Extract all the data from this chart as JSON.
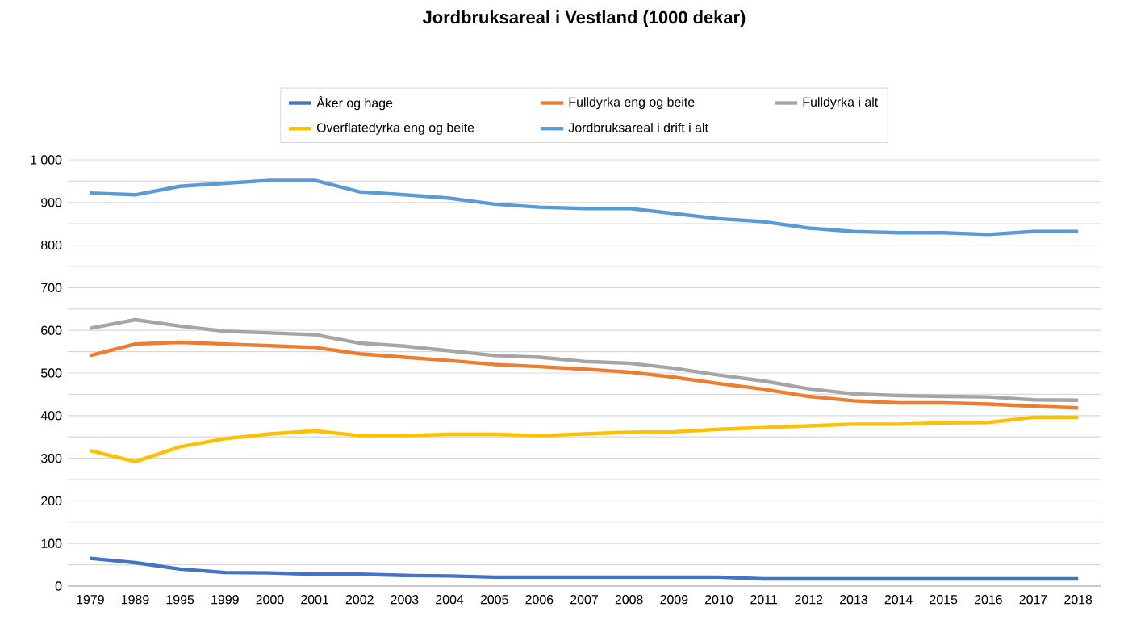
{
  "chart_data": {
    "type": "line",
    "title": "Jordbruksareal i Vestland (1000 dekar)",
    "categories": [
      "1979",
      "1989",
      "1995",
      "1999",
      "2000",
      "2001",
      "2002",
      "2003",
      "2004",
      "2005",
      "2006",
      "2007",
      "2008",
      "2009",
      "2010",
      "2011",
      "2012",
      "2013",
      "2014",
      "2015",
      "2016",
      "2017",
      "2018"
    ],
    "series": [
      {
        "name": "Åker og hage",
        "color": "#4472c4",
        "values": [
          65,
          55,
          40,
          32,
          31,
          28,
          28,
          25,
          24,
          21,
          21,
          21,
          21,
          21,
          21,
          17,
          17,
          17,
          17,
          17,
          17,
          17,
          17
        ]
      },
      {
        "name": "Fulldyrka eng og beite",
        "color": "#ed7d31",
        "values": [
          541,
          568,
          572,
          568,
          564,
          560,
          545,
          537,
          529,
          520,
          515,
          509,
          502,
          490,
          475,
          462,
          445,
          435,
          430,
          430,
          427,
          422,
          418
        ]
      },
      {
        "name": "Fulldyrka i alt",
        "color": "#a5a5a5",
        "values": [
          605,
          625,
          610,
          598,
          594,
          590,
          570,
          563,
          552,
          541,
          537,
          527,
          523,
          511,
          495,
          481,
          463,
          451,
          447,
          445,
          444,
          437,
          436
        ]
      },
      {
        "name": "Overflatedyrka eng og beite",
        "color": "#ffc000",
        "values": [
          318,
          292,
          327,
          346,
          357,
          364,
          353,
          353,
          356,
          356,
          353,
          357,
          361,
          362,
          368,
          372,
          376,
          380,
          380,
          383,
          384,
          396,
          396
        ]
      },
      {
        "name": "Jordbruksareal i drift i alt",
        "color": "#5b9bd5",
        "values": [
          922,
          918,
          938,
          945,
          952,
          952,
          925,
          918,
          910,
          896,
          889,
          886,
          886,
          874,
          862,
          855,
          840,
          832,
          829,
          829,
          825,
          832,
          832
        ]
      }
    ],
    "ylim": [
      0,
      1000
    ],
    "yticks": [
      0,
      {
        "value": 50,
        "label": null
      },
      100,
      {
        "value": 150,
        "label": null
      },
      200,
      {
        "value": 250,
        "label": null
      },
      300,
      {
        "value": 350,
        "label": null
      },
      400,
      {
        "value": 450,
        "label": null
      },
      500,
      {
        "value": 550,
        "label": null
      },
      600,
      {
        "value": 650,
        "label": null
      },
      700,
      {
        "value": 750,
        "label": null
      },
      800,
      {
        "value": 850,
        "label": null
      },
      900,
      {
        "value": 950,
        "label": null
      },
      {
        "value": 1000,
        "label": "1 000"
      }
    ],
    "grid": "y",
    "legend": "top",
    "marker": "none",
    "line_style": "solid"
  }
}
